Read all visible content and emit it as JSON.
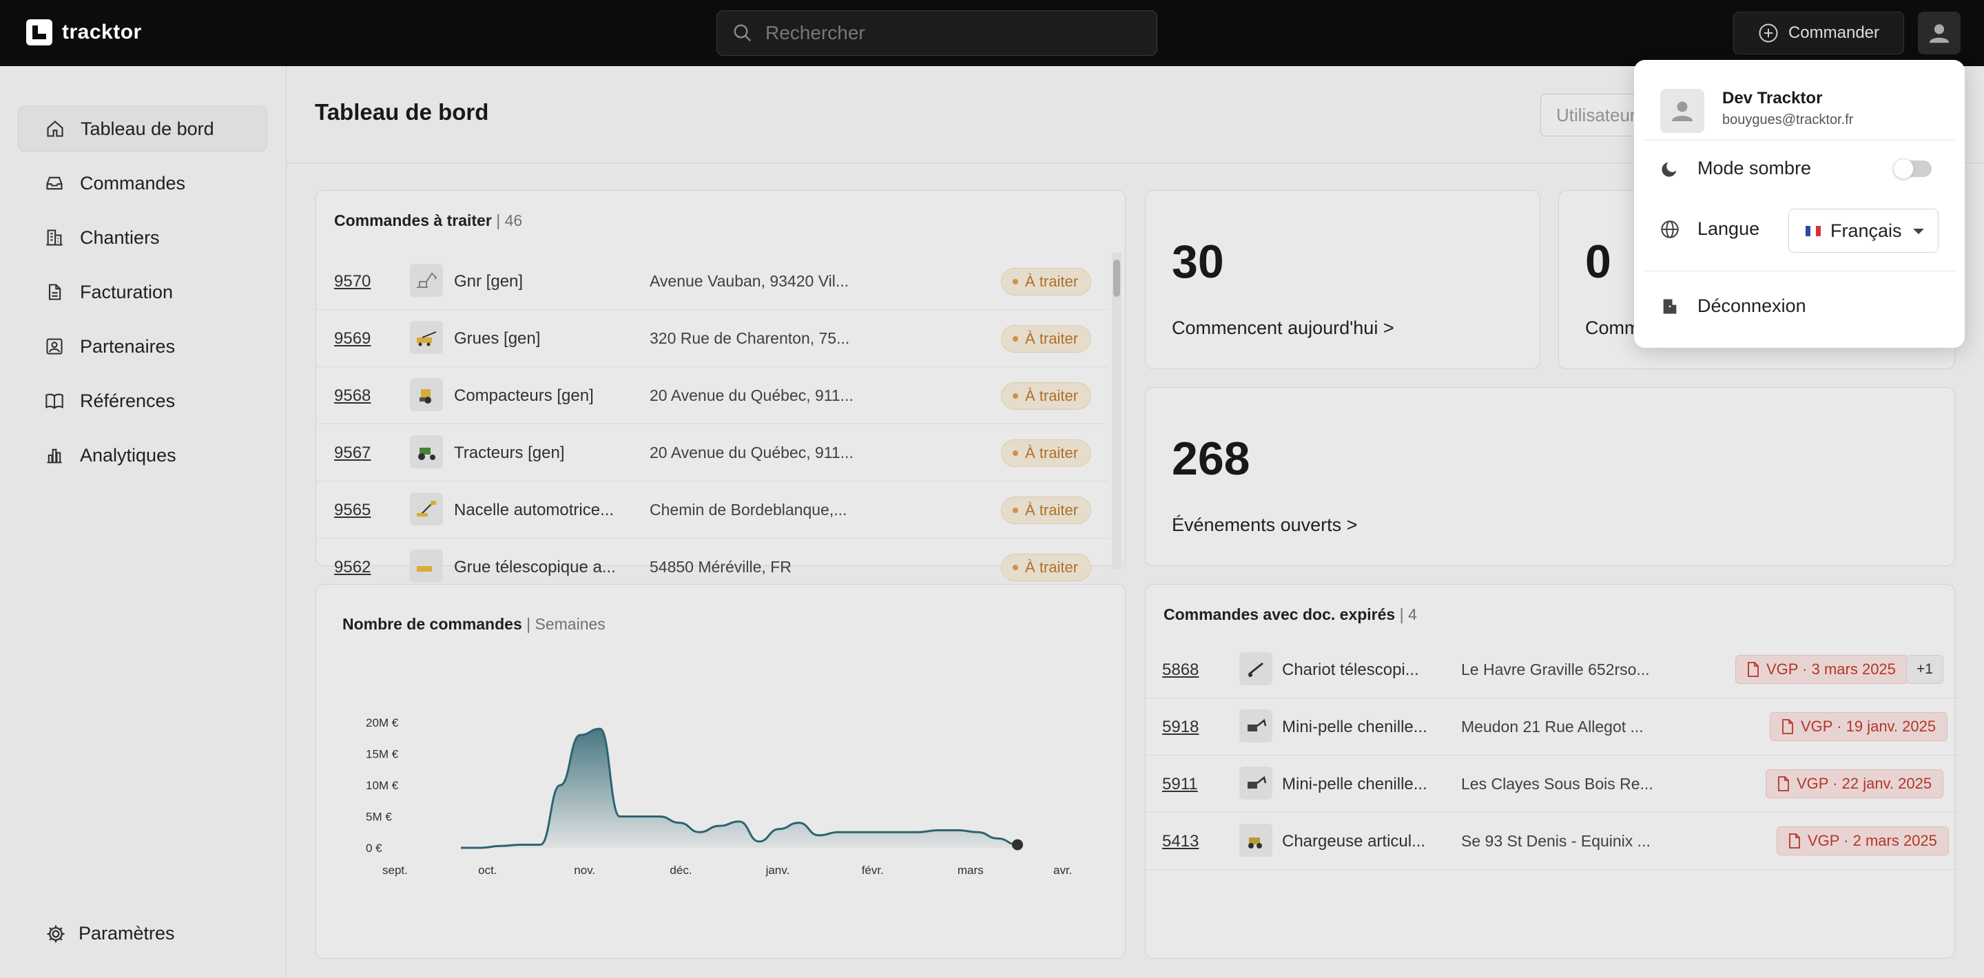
{
  "app": {
    "logo_text": "tracktor"
  },
  "topbar": {
    "search_placeholder": "Rechercher",
    "order_label": "Commander"
  },
  "sidebar": {
    "items": [
      {
        "label": "Tableau de bord",
        "icon": "home-icon"
      },
      {
        "label": "Commandes",
        "icon": "inbox-icon"
      },
      {
        "label": "Chantiers",
        "icon": "building-icon"
      },
      {
        "label": "Facturation",
        "icon": "invoice-icon"
      },
      {
        "label": "Partenaires",
        "icon": "partner-icon"
      },
      {
        "label": "Références",
        "icon": "book-icon"
      },
      {
        "label": "Analytiques",
        "icon": "chart-icon"
      }
    ],
    "settings_label": "Paramètres"
  },
  "main": {
    "title": "Tableau de bord",
    "user_filter_placeholder": "Utilisateur"
  },
  "orders_to_process": {
    "title": "Commandes à traiter",
    "count": "| 46",
    "status_label": "À traiter",
    "rows": [
      {
        "id": "9570",
        "name": "Gnr [gen]",
        "address": "Avenue Vauban, 93420 Vil..."
      },
      {
        "id": "9569",
        "name": "Grues [gen]",
        "address": "320 Rue de Charenton, 75..."
      },
      {
        "id": "9568",
        "name": "Compacteurs [gen]",
        "address": "20 Avenue du Québec, 911..."
      },
      {
        "id": "9567",
        "name": "Tracteurs [gen]",
        "address": "20 Avenue du Québec, 911..."
      },
      {
        "id": "9565",
        "name": "Nacelle automotrice...",
        "address": "Chemin de Bordeblanque,..."
      },
      {
        "id": "9562",
        "name": "Grue télescopique a...",
        "address": "54850 Méréville, FR"
      }
    ]
  },
  "stats": {
    "today": {
      "value": "30",
      "label": "Commencent aujourd'hui >"
    },
    "second": {
      "value": "0",
      "label": "Comm"
    },
    "events": {
      "value": "268",
      "label": "Événements ouverts >"
    }
  },
  "chart_data": {
    "type": "area",
    "title": "Nombre de commandes",
    "subtitle": "| Semaines",
    "x_ticks": [
      "sept.",
      "oct.",
      "nov.",
      "déc.",
      "janv.",
      "févr.",
      "mars",
      "avr."
    ],
    "y_ticks": [
      "20M €",
      "15M €",
      "10M €",
      "5M €",
      "0 €"
    ],
    "ylim": [
      0,
      20
    ],
    "series": [
      {
        "values": [
          0,
          0,
          0.3,
          0.5,
          0.5,
          10,
          18,
          19,
          5,
          5,
          5,
          4,
          2.5,
          3.5,
          4.2,
          1,
          3,
          4,
          2,
          2.5,
          2.5,
          2.5,
          2.5,
          2.5,
          2.8,
          2.8,
          2.5,
          1.5,
          0.5
        ]
      }
    ],
    "color": "#2f6b78"
  },
  "expired_docs": {
    "title": "Commandes avec doc. expirés",
    "count": "| 4",
    "rows": [
      {
        "id": "5868",
        "name": "Chariot télescopi...",
        "address": "Le Havre Graville 652rso...",
        "doc": "VGP · 3 mars 2025",
        "extra": "+1"
      },
      {
        "id": "5918",
        "name": "Mini-pelle chenille...",
        "address": "Meudon 21 Rue Allegot ...",
        "doc": "VGP · 19 janv. 2025",
        "extra": ""
      },
      {
        "id": "5911",
        "name": "Mini-pelle chenille...",
        "address": "Les Clayes Sous Bois Re...",
        "doc": "VGP · 22 janv. 2025",
        "extra": ""
      },
      {
        "id": "5413",
        "name": "Chargeuse articul...",
        "address": "Se 93 St Denis - Equinix ...",
        "doc": "VGP · 2 mars 2025",
        "extra": ""
      }
    ]
  },
  "user_menu": {
    "name": "Dev Tracktor",
    "email": "bouygues@tracktor.fr",
    "dark_mode_label": "Mode sombre",
    "language_label": "Langue",
    "language_value": "Français",
    "logout_label": "Déconnexion"
  }
}
